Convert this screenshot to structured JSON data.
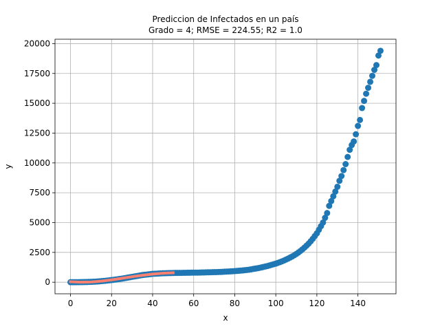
{
  "chart_data": {
    "type": "scatter",
    "title": "Prediccion de Infectados en un país",
    "subtitle": "Grado = 4; RMSE = 224.55; R2 = 1.0",
    "xlabel": "x",
    "ylabel": "y",
    "xlim": [
      -7.55,
      158.55
    ],
    "ylim": [
      -970,
      20370
    ],
    "xticks": [
      0,
      20,
      40,
      60,
      80,
      100,
      120,
      140
    ],
    "yticks": [
      0,
      2500,
      5000,
      7500,
      10000,
      12500,
      15000,
      17500,
      20000
    ],
    "grid": true,
    "series": [
      {
        "type": "scatter",
        "color": "#1f77b4",
        "x": [
          0,
          1,
          2,
          3,
          4,
          5,
          6,
          7,
          8,
          9,
          10,
          11,
          12,
          13,
          14,
          15,
          16,
          17,
          18,
          19,
          20,
          21,
          22,
          23,
          24,
          25,
          26,
          27,
          28,
          29,
          30,
          31,
          32,
          33,
          34,
          35,
          36,
          37,
          38,
          39,
          40,
          41,
          42,
          43,
          44,
          45,
          46,
          47,
          48,
          49,
          50,
          51,
          52,
          53,
          54,
          55,
          56,
          57,
          58,
          59,
          60,
          61,
          62,
          63,
          64,
          65,
          66,
          67,
          68,
          69,
          70,
          71,
          72,
          73,
          74,
          75,
          76,
          77,
          78,
          79,
          80,
          81,
          82,
          83,
          84,
          85,
          86,
          87,
          88,
          89,
          90,
          91,
          92,
          93,
          94,
          95,
          96,
          97,
          98,
          99,
          100,
          101,
          102,
          103,
          104,
          105,
          106,
          107,
          108,
          109,
          110,
          111,
          112,
          113,
          114,
          115,
          116,
          117,
          118,
          119,
          120,
          121,
          122,
          123,
          124,
          125,
          126,
          127,
          128,
          129,
          130,
          131,
          132,
          133,
          134,
          135,
          136,
          137,
          138,
          139,
          140,
          141,
          142,
          143,
          144,
          145,
          146,
          147,
          148,
          149,
          150,
          151
        ],
        "values": [
          0,
          0,
          0,
          5,
          5,
          10,
          10,
          15,
          20,
          25,
          30,
          40,
          50,
          60,
          75,
          90,
          105,
          120,
          140,
          160,
          180,
          200,
          225,
          250,
          275,
          300,
          330,
          360,
          390,
          420,
          450,
          480,
          510,
          540,
          570,
          600,
          620,
          640,
          660,
          680,
          700,
          710,
          720,
          730,
          740,
          750,
          755,
          760,
          765,
          770,
          775,
          780,
          780,
          785,
          785,
          790,
          790,
          795,
          795,
          800,
          800,
          805,
          805,
          810,
          815,
          820,
          825,
          830,
          835,
          840,
          845,
          850,
          855,
          860,
          870,
          880,
          890,
          900,
          910,
          920,
          930,
          945,
          960,
          975,
          990,
          1010,
          1030,
          1050,
          1080,
          1110,
          1140,
          1170,
          1200,
          1240,
          1280,
          1320,
          1360,
          1410,
          1460,
          1510,
          1560,
          1620,
          1680,
          1750,
          1820,
          1900,
          1980,
          2070,
          2160,
          2260,
          2370,
          2490,
          2620,
          2760,
          2910,
          3070,
          3240,
          3430,
          3640,
          3870,
          4100,
          4400,
          4700,
          5000,
          5400,
          5800,
          6400,
          6800,
          7200,
          7600,
          8000,
          8500,
          8900,
          9400,
          9900,
          10500,
          11100,
          11500,
          11800,
          12400,
          13100,
          13600,
          14600,
          15200,
          15800,
          16300,
          16800,
          17300,
          17800,
          18200,
          19000,
          19400
        ]
      },
      {
        "type": "line",
        "color": "#fa8072",
        "x": [
          0,
          5,
          10,
          15,
          20,
          25,
          30,
          35,
          40,
          45,
          50
        ],
        "values": [
          40,
          0,
          20,
          90,
          200,
          330,
          460,
          580,
          680,
          750,
          790
        ]
      }
    ]
  }
}
